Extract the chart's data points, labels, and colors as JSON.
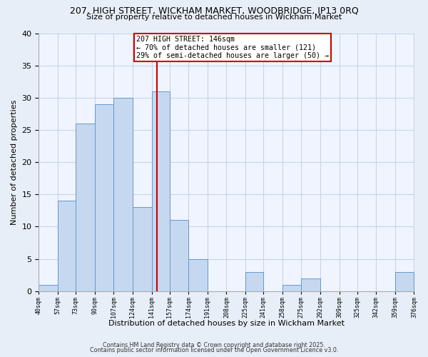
{
  "title1": "207, HIGH STREET, WICKHAM MARKET, WOODBRIDGE, IP13 0RQ",
  "title2": "Size of property relative to detached houses in Wickham Market",
  "xlabel": "Distribution of detached houses by size in Wickham Market",
  "ylabel": "Number of detached properties",
  "bin_edges": [
    40,
    57,
    73,
    90,
    107,
    124,
    141,
    157,
    174,
    191,
    208,
    225,
    241,
    258,
    275,
    292,
    309,
    325,
    342,
    359,
    376
  ],
  "counts": [
    1,
    14,
    26,
    29,
    30,
    13,
    31,
    11,
    5,
    0,
    0,
    3,
    0,
    1,
    2,
    0,
    0,
    0,
    0,
    3
  ],
  "bar_color": "#c5d8f0",
  "bar_edge_color": "#6699cc",
  "property_size": 146,
  "property_line_color": "#cc0000",
  "annotation_title": "207 HIGH STREET: 146sqm",
  "annotation_line1": "← 70% of detached houses are smaller (121)",
  "annotation_line2": "29% of semi-detached houses are larger (50) →",
  "annotation_box_color": "#ffffff",
  "annotation_box_edge": "#cc0000",
  "ylim": [
    0,
    40
  ],
  "yticks": [
    0,
    5,
    10,
    15,
    20,
    25,
    30,
    35,
    40
  ],
  "tick_labels": [
    "40sqm",
    "57sqm",
    "73sqm",
    "90sqm",
    "107sqm",
    "124sqm",
    "141sqm",
    "157sqm",
    "174sqm",
    "191sqm",
    "208sqm",
    "225sqm",
    "241sqm",
    "258sqm",
    "275sqm",
    "292sqm",
    "309sqm",
    "325sqm",
    "342sqm",
    "359sqm",
    "376sqm"
  ],
  "footer1": "Contains HM Land Registry data © Crown copyright and database right 2025.",
  "footer2": "Contains public sector information licensed under the Open Government Licence v3.0.",
  "background_color": "#e8eef8",
  "plot_background": "#f0f4ff",
  "grid_color": "#c8d4e8"
}
